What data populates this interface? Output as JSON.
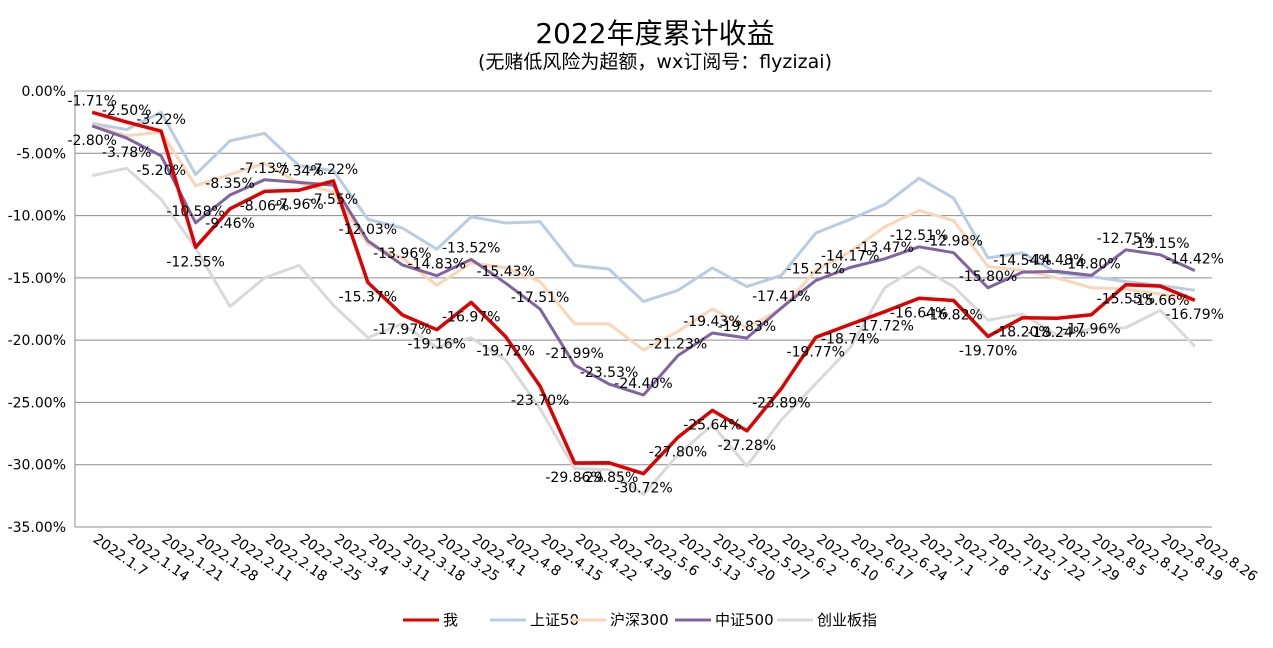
{
  "chart_data": {
    "type": "line",
    "title": "2022年度累计收益",
    "subtitle": "(无赌低风险为超额，wx订阅号：flyzizai)",
    "xlabel": "",
    "ylabel": "",
    "ylim": [
      -35,
      0
    ],
    "yticks": [
      0,
      -5,
      -10,
      -15,
      -20,
      -25,
      -30,
      -35
    ],
    "ytick_labels": [
      "0.00%",
      "-5.00%",
      "-10.00%",
      "-15.00%",
      "-20.00%",
      "-25.00%",
      "-30.00%",
      "-35.00%"
    ],
    "grid": true,
    "legend_position": "bottom",
    "categories": [
      "2022.1.7",
      "2022.1.14",
      "2022.1.21",
      "2022.1.28",
      "2022.2.11",
      "2022.2.18",
      "2022.2.25",
      "2022.3.4",
      "2022.3.11",
      "2022.3.18",
      "2022.3.25",
      "2022.4.1",
      "2022.4.8",
      "2022.4.15",
      "2022.4.22",
      "2022.4.29",
      "2022.5.6",
      "2022.5.13",
      "2022.5.20",
      "2022.5.27",
      "2022.6.2",
      "2022.6.10",
      "2022.6.17",
      "2022.6.24",
      "2022.7.1",
      "2022.7.8",
      "2022.7.15",
      "2022.7.22",
      "2022.7.29",
      "2022.8.5",
      "2022.8.12",
      "2022.8.19",
      "2022.8.26"
    ],
    "series": [
      {
        "name": "我",
        "color": "#e00000",
        "labels_shown": true,
        "values": [
          -1.71,
          -2.5,
          -3.22,
          -12.55,
          -9.46,
          -8.06,
          -7.96,
          -7.22,
          -15.37,
          -17.97,
          -19.16,
          -16.97,
          -19.72,
          -23.7,
          -29.86,
          -29.85,
          -30.72,
          -27.8,
          -25.64,
          -27.28,
          -23.89,
          -19.77,
          -18.74,
          -17.72,
          -16.64,
          -16.82,
          -19.7,
          -18.2,
          -18.24,
          -17.96,
          -15.55,
          -15.66,
          -16.79
        ]
      },
      {
        "name": "上证50",
        "color": "#b8cce4",
        "labels_shown": false,
        "values": [
          -2.6,
          -3.1,
          -1.7,
          -6.7,
          -4.0,
          -3.4,
          -6.0,
          -6.4,
          -10.3,
          -11.0,
          -12.7,
          -10.1,
          -10.6,
          -10.5,
          -14.0,
          -14.3,
          -16.9,
          -16.0,
          -14.2,
          -15.7,
          -14.8,
          -11.4,
          -10.3,
          -9.1,
          -7.0,
          -8.6,
          -13.4,
          -13.0,
          -14.6,
          -14.9,
          -15.3,
          -15.6,
          -16.0
        ]
      },
      {
        "name": "沪深300",
        "color": "#fbd5b5",
        "labels_shown": false,
        "values": [
          -2.7,
          -3.6,
          -3.3,
          -7.6,
          -6.7,
          -5.8,
          -7.4,
          -8.1,
          -12.3,
          -13.4,
          -15.6,
          -13.8,
          -14.2,
          -15.3,
          -18.7,
          -18.7,
          -20.8,
          -19.3,
          -17.5,
          -19.0,
          -17.5,
          -14.4,
          -12.9,
          -10.9,
          -9.6,
          -10.4,
          -14.1,
          -14.4,
          -15.0,
          -15.8,
          -15.9,
          -16.3,
          -16.8
        ]
      },
      {
        "name": "中证500",
        "color": "#8064a2",
        "labels_shown": true,
        "values": [
          -2.8,
          -3.78,
          -5.2,
          -10.58,
          -8.35,
          -7.13,
          -7.34,
          -7.55,
          -12.03,
          -13.96,
          -14.83,
          -13.52,
          -15.43,
          -17.51,
          -21.99,
          -23.53,
          -24.4,
          -21.23,
          -19.43,
          -19.83,
          -17.41,
          -15.21,
          -14.17,
          -13.47,
          -12.51,
          -12.98,
          -15.8,
          -14.54,
          -14.48,
          -14.8,
          -12.75,
          -13.15,
          -14.42
        ]
      },
      {
        "name": "创业板指",
        "color": "#d9d9d9",
        "labels_shown": false,
        "values": [
          -6.8,
          -6.2,
          -8.7,
          -12.6,
          -17.3,
          -15.0,
          -14.0,
          -17.2,
          -19.8,
          -18.7,
          -20.6,
          -19.8,
          -21.6,
          -25.5,
          -30.3,
          -30.4,
          -32.4,
          -29.2,
          -26.8,
          -30.1,
          -26.4,
          -23.5,
          -20.6,
          -15.8,
          -14.1,
          -15.7,
          -18.4,
          -17.9,
          -19.6,
          -19.1,
          -19.0,
          -17.6,
          -20.5
        ]
      }
    ]
  }
}
